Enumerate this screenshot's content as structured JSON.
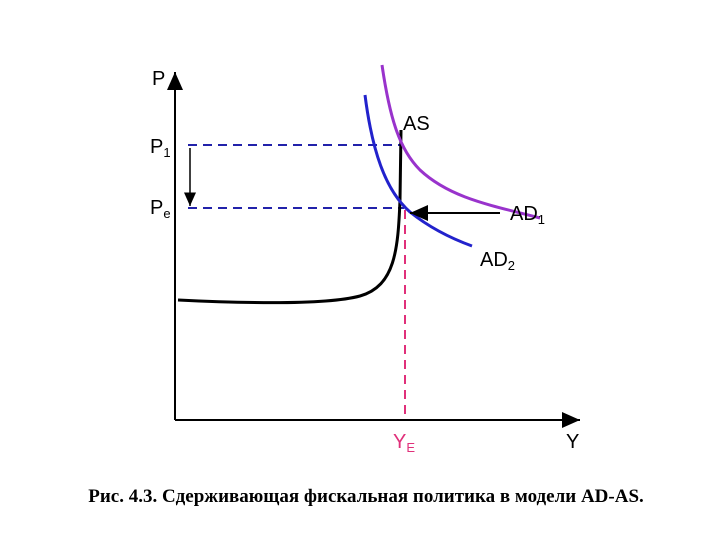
{
  "diagram": {
    "axes": {
      "y": "P",
      "x": "Y"
    },
    "labels": {
      "p1": {
        "text": "P",
        "sub": "1"
      },
      "pe": {
        "text": "P",
        "sub": "e"
      },
      "as": {
        "text": "AS"
      },
      "ad1": {
        "text": "AD",
        "sub": "1"
      },
      "ad2": {
        "text": "AD",
        "sub": "2"
      },
      "ye": {
        "text": "Y",
        "sub": "E"
      }
    },
    "caption": "Рис. 4.3. Сдерживающая фискальная политика в модели AD-AS."
  }
}
